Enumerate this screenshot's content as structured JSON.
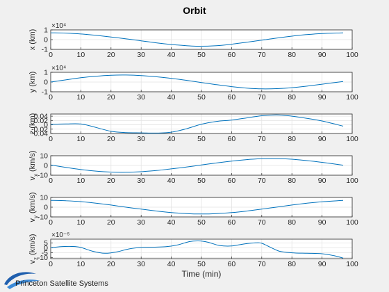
{
  "chart_data": {
    "type": "line",
    "title": "Orbit",
    "xlabel": "Time (min)",
    "xlim": [
      0,
      100
    ],
    "xticks": [
      0,
      10,
      20,
      30,
      40,
      50,
      60,
      70,
      80,
      90,
      100
    ],
    "grid": true,
    "line_color": "#0072bd",
    "subplots": [
      {
        "ylabel": "x (km)",
        "ylabel_sub": "",
        "exponent_label": "×10⁴",
        "ylim": [
          -1,
          1
        ],
        "yticks": [
          -1,
          0,
          1
        ],
        "ytick_labels": [
          "-1",
          "0",
          "1"
        ],
        "x": [
          0,
          5,
          10,
          15,
          20,
          25,
          30,
          35,
          40,
          45,
          49,
          55,
          60,
          65,
          70,
          75,
          80,
          85,
          90,
          97
        ],
        "values": [
          0.7,
          0.67,
          0.58,
          0.44,
          0.27,
          0.08,
          -0.12,
          -0.33,
          -0.5,
          -0.62,
          -0.68,
          -0.62,
          -0.47,
          -0.27,
          -0.06,
          0.16,
          0.36,
          0.52,
          0.63,
          0.7
        ]
      },
      {
        "ylabel": "y (km)",
        "ylabel_sub": "",
        "exponent_label": "×10⁴",
        "ylim": [
          -1,
          1
        ],
        "yticks": [
          -1,
          0,
          1
        ],
        "ytick_labels": [
          "-1",
          "0",
          "1"
        ],
        "x": [
          0,
          5,
          10,
          15,
          20,
          25,
          30,
          35,
          40,
          45,
          50,
          55,
          60,
          65,
          70,
          75,
          80,
          85,
          90,
          97
        ],
        "values": [
          0.0,
          0.22,
          0.44,
          0.6,
          0.7,
          0.72,
          0.66,
          0.54,
          0.38,
          0.18,
          -0.05,
          -0.27,
          -0.47,
          -0.62,
          -0.7,
          -0.68,
          -0.58,
          -0.42,
          -0.22,
          0.05
        ]
      },
      {
        "ylabel": "z (km)",
        "ylabel_sub": "",
        "exponent_label": "",
        "ylim": [
          -0.04,
          0.05
        ],
        "yticks": [
          -0.04,
          -0.02,
          0,
          0.02,
          0.04
        ],
        "ytick_labels": [
          "-0.04",
          "-0.02",
          "0",
          "0.02",
          "0.04"
        ],
        "x": [
          0,
          5,
          10,
          15,
          20,
          25,
          30,
          35,
          40,
          45,
          50,
          55,
          60,
          65,
          70,
          75,
          80,
          85,
          90,
          97
        ],
        "values": [
          0.002,
          0.004,
          0.004,
          -0.012,
          -0.03,
          -0.036,
          -0.037,
          -0.038,
          -0.034,
          -0.018,
          0.003,
          0.016,
          0.022,
          0.032,
          0.042,
          0.046,
          0.04,
          0.03,
          0.018,
          -0.006
        ]
      },
      {
        "ylabel": "v",
        "ylabel_sub": "x",
        "ylabel_units": " (km/s)",
        "exponent_label": "",
        "ylim": [
          -10,
          10
        ],
        "yticks": [
          -10,
          0,
          10
        ],
        "ytick_labels": [
          "-10",
          "0",
          "10"
        ],
        "x": [
          0,
          5,
          10,
          15,
          20,
          25,
          30,
          35,
          40,
          45,
          50,
          55,
          60,
          65,
          70,
          75,
          80,
          85,
          90,
          97
        ],
        "values": [
          0.5,
          -2.0,
          -4.2,
          -5.8,
          -6.8,
          -7.0,
          -6.4,
          -5.2,
          -3.5,
          -1.6,
          0.5,
          2.6,
          4.5,
          6.0,
          6.9,
          7.1,
          6.4,
          5.0,
          3.2,
          0.3
        ]
      },
      {
        "ylabel": "v",
        "ylabel_sub": "y",
        "ylabel_units": " (km/s)",
        "exponent_label": "",
        "ylim": [
          -10,
          10
        ],
        "yticks": [
          -10,
          0,
          10
        ],
        "ytick_labels": [
          "-10",
          "0",
          "10"
        ],
        "x": [
          0,
          5,
          10,
          15,
          20,
          25,
          30,
          35,
          40,
          45,
          50,
          55,
          60,
          65,
          70,
          75,
          80,
          85,
          90,
          97
        ],
        "values": [
          7.0,
          6.6,
          5.7,
          4.1,
          2.2,
          0.0,
          -2.0,
          -3.9,
          -5.5,
          -6.6,
          -7.0,
          -6.6,
          -5.6,
          -4.0,
          -2.0,
          0.1,
          2.2,
          4.1,
          5.6,
          7.0
        ]
      },
      {
        "ylabel": "v",
        "ylabel_sub": "z",
        "ylabel_units": " (km/s)",
        "exponent_label": "×10⁻⁵",
        "ylim": [
          -11,
          9
        ],
        "yticks": [
          -10,
          -5,
          0,
          5
        ],
        "ytick_labels": [
          "-10",
          "-5",
          "0",
          "5"
        ],
        "x": [
          0,
          3,
          7,
          10,
          14,
          18,
          22,
          26,
          30,
          34,
          38,
          42,
          46,
          49,
          52,
          56,
          60,
          64,
          68,
          70,
          73,
          76,
          80,
          85,
          90,
          94,
          97
        ],
        "values": [
          0,
          1.2,
          1.5,
          0.5,
          -3.5,
          -5.5,
          -4.0,
          -1.0,
          0.5,
          0.8,
          1.2,
          3.0,
          6.5,
          7.2,
          6.0,
          2.5,
          2.0,
          4.0,
          5.2,
          4.8,
          0.5,
          -3.5,
          -5.0,
          -5.5,
          -6.0,
          -8.0,
          -10.5
        ]
      }
    ]
  },
  "logo": {
    "name": "Princeton Satellite Systems",
    "icon": "orbit-swoosh-icon"
  }
}
